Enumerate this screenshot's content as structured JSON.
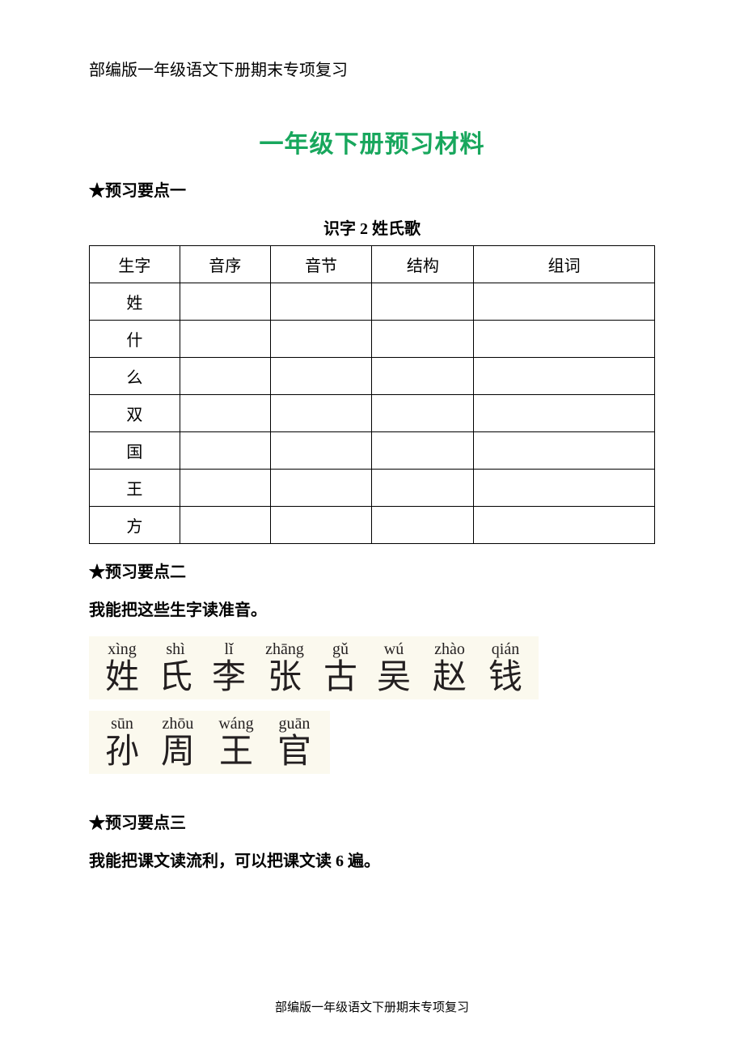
{
  "header": "部编版一年级语文下册期末专项复习",
  "mainTitle": "一年级下册预习材料",
  "section1": {
    "heading": "★预习要点一",
    "tableCaption": "识字 2  姓氏歌",
    "columns": [
      "生字",
      "音序",
      "音节",
      "结构",
      "组词"
    ],
    "rows": [
      "姓",
      "什",
      "么",
      "双",
      "国",
      "王",
      "方"
    ]
  },
  "section2": {
    "heading": "★预习要点二",
    "body": "我能把这些生字读准音。",
    "line1": [
      {
        "py": "xìng",
        "hz": "姓"
      },
      {
        "py": "shì",
        "hz": "氏"
      },
      {
        "py": "lǐ",
        "hz": "李"
      },
      {
        "py": "zhāng",
        "hz": "张"
      },
      {
        "py": "gǔ",
        "hz": "古"
      },
      {
        "py": "wú",
        "hz": "吴"
      },
      {
        "py": "zhào",
        "hz": "赵"
      },
      {
        "py": "qián",
        "hz": "钱"
      }
    ],
    "line2": [
      {
        "py": "sūn",
        "hz": "孙"
      },
      {
        "py": "zhōu",
        "hz": "周"
      },
      {
        "py": "wáng",
        "hz": "王"
      },
      {
        "py": "guān",
        "hz": "官"
      }
    ]
  },
  "section3": {
    "heading": "★预习要点三",
    "body": "我能把课文读流利，可以把课文读 6 遍。"
  },
  "footer": "部编版一年级语文下册期末专项复习",
  "colors": {
    "titleGreen": "#18a75d",
    "text": "#000000",
    "pinyinBg": "#fbf9ee",
    "hanziColor": "#231f20",
    "border": "#000000",
    "pageBg": "#ffffff"
  }
}
